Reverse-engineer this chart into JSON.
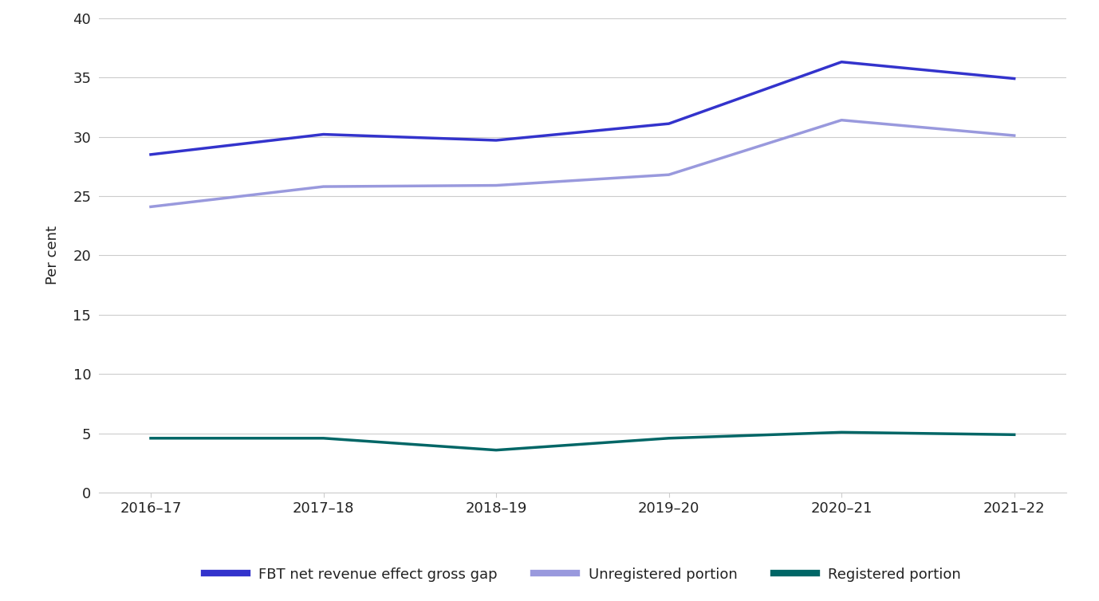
{
  "x_labels": [
    "2016–17",
    "2017–18",
    "2018–19",
    "2019–20",
    "2020–21",
    "2021–22"
  ],
  "x_positions": [
    0,
    1,
    2,
    3,
    4,
    5
  ],
  "fbt_gross_gap": [
    28.5,
    30.2,
    29.7,
    31.1,
    36.3,
    34.9
  ],
  "unregistered": [
    24.1,
    25.8,
    25.9,
    26.8,
    31.4,
    30.1
  ],
  "registered": [
    4.6,
    4.6,
    3.6,
    4.6,
    5.1,
    4.9
  ],
  "fbt_color": "#3333cc",
  "unregistered_color": "#9999dd",
  "registered_color": "#006666",
  "ylabel": "Per cent",
  "ylim": [
    0,
    40
  ],
  "yticks": [
    0,
    5,
    10,
    15,
    20,
    25,
    30,
    35,
    40
  ],
  "legend_labels": [
    "FBT net revenue effect gross gap",
    "Unregistered portion",
    "Registered portion"
  ],
  "background_color": "#ffffff",
  "grid_color": "#cccccc",
  "line_width": 2.5,
  "tick_fontsize": 13,
  "label_fontsize": 13,
  "legend_fontsize": 13
}
